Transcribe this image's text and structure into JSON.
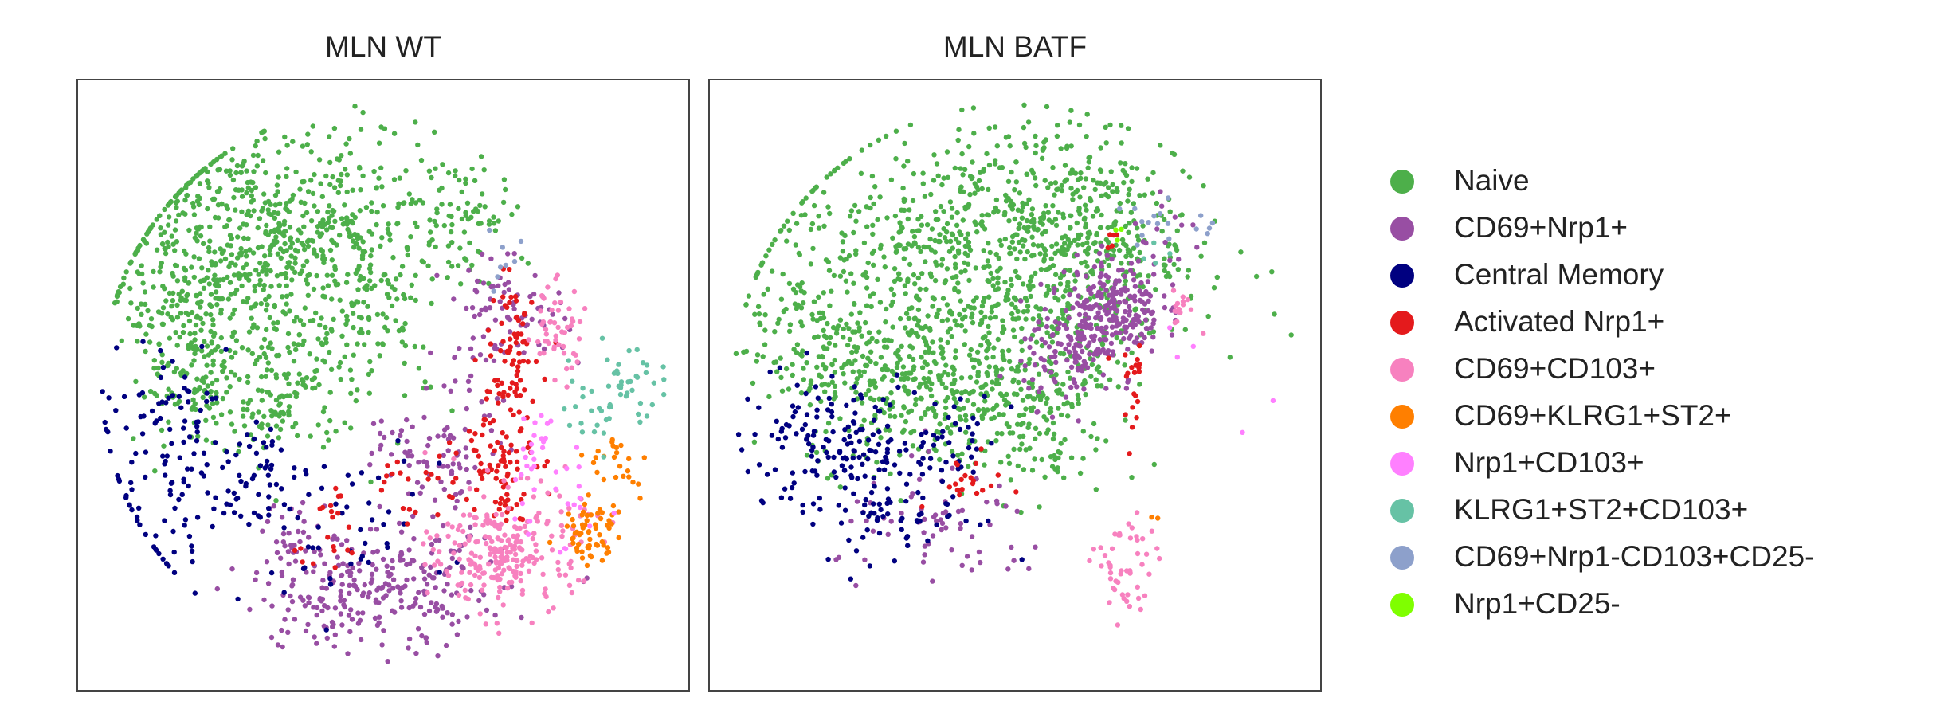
{
  "chart_data": [
    {
      "type": "scatter",
      "title": "MLN WT",
      "xlabel": "",
      "ylabel": "",
      "axes_visible": false,
      "grid": false,
      "xlim": [
        0,
        1
      ],
      "ylim": [
        0,
        1
      ],
      "series": [
        {
          "name": "Naive",
          "color": "#4daf4a",
          "clusters": [
            [
              0.32,
              0.76,
              0.13,
              0.08,
              520
            ],
            [
              0.22,
              0.63,
              0.08,
              0.09,
              230
            ],
            [
              0.5,
              0.64,
              0.06,
              0.09,
              100
            ],
            [
              0.62,
              0.79,
              0.06,
              0.05,
              70
            ],
            [
              0.32,
              0.48,
              0.06,
              0.05,
              110
            ],
            [
              0.19,
              0.5,
              0.04,
              0.04,
              60
            ],
            [
              0.14,
              0.62,
              0.04,
              0.05,
              40
            ],
            [
              0.4,
              0.57,
              0.05,
              0.07,
              70
            ]
          ]
        },
        {
          "name": "CD69+Nrp1+",
          "color": "#984ea3",
          "clusters": [
            [
              0.52,
              0.16,
              0.09,
              0.05,
              220
            ],
            [
              0.7,
              0.62,
              0.05,
              0.04,
              80
            ],
            [
              0.36,
              0.24,
              0.03,
              0.04,
              40
            ],
            [
              0.62,
              0.42,
              0.04,
              0.08,
              60
            ],
            [
              0.55,
              0.4,
              0.04,
              0.03,
              30
            ],
            [
              0.38,
              0.13,
              0.05,
              0.03,
              40
            ]
          ]
        },
        {
          "name": "Central Memory",
          "color": "#000080",
          "clusters": [
            [
              0.14,
              0.34,
              0.07,
              0.09,
              100
            ],
            [
              0.29,
              0.36,
              0.04,
              0.05,
              50
            ],
            [
              0.4,
              0.27,
              0.1,
              0.06,
              50
            ],
            [
              0.17,
              0.47,
              0.03,
              0.04,
              20
            ]
          ]
        },
        {
          "name": "Activated Nrp1+",
          "color": "#e41a1c",
          "clusters": [
            [
              0.69,
              0.38,
              0.03,
              0.05,
              80
            ],
            [
              0.7,
              0.51,
              0.025,
              0.05,
              50
            ],
            [
              0.71,
              0.6,
              0.02,
              0.04,
              30
            ],
            [
              0.41,
              0.27,
              0.03,
              0.04,
              20
            ],
            [
              0.55,
              0.33,
              0.03,
              0.04,
              20
            ]
          ]
        },
        {
          "name": "CD69+CD103+",
          "color": "#f781bf",
          "clusters": [
            [
              0.71,
              0.23,
              0.06,
              0.05,
              220
            ],
            [
              0.78,
              0.59,
              0.025,
              0.04,
              50
            ],
            [
              0.68,
              0.2,
              0.03,
              0.03,
              30
            ]
          ]
        },
        {
          "name": "CD69+KLRG1+ST2+",
          "color": "#ff7f00",
          "clusters": [
            [
              0.84,
              0.26,
              0.025,
              0.025,
              60
            ],
            [
              0.88,
              0.37,
              0.03,
              0.03,
              25
            ]
          ]
        },
        {
          "name": "Nrp1+CD103+",
          "color": "#ff80ff",
          "clusters": [
            [
              0.75,
              0.37,
              0.025,
              0.06,
              25
            ],
            [
              0.8,
              0.3,
              0.03,
              0.05,
              15
            ]
          ]
        },
        {
          "name": "KLRG1+ST2+CD103+",
          "color": "#66c2a5",
          "clusters": [
            [
              0.9,
              0.5,
              0.04,
              0.03,
              40
            ],
            [
              0.83,
              0.45,
              0.02,
              0.03,
              15
            ]
          ]
        },
        {
          "name": "CD69+Nrp1-CD103+CD25-",
          "color": "#8da0cb",
          "clusters": [
            [
              0.7,
              0.71,
              0.02,
              0.04,
              8
            ]
          ]
        },
        {
          "name": "Nrp1+CD25-",
          "color": "#7fff00",
          "clusters": []
        }
      ]
    },
    {
      "type": "scatter",
      "title": "MLN BATF",
      "xlabel": "",
      "ylabel": "",
      "axes_visible": false,
      "grid": false,
      "xlim": [
        0,
        1
      ],
      "ylim": [
        0,
        1
      ],
      "series": [
        {
          "name": "Naive",
          "color": "#4daf4a",
          "clusters": [
            [
              0.45,
              0.72,
              0.17,
              0.1,
              850
            ],
            [
              0.38,
              0.5,
              0.11,
              0.07,
              380
            ],
            [
              0.18,
              0.55,
              0.06,
              0.05,
              120
            ],
            [
              0.53,
              0.43,
              0.06,
              0.06,
              90
            ],
            [
              0.61,
              0.78,
              0.06,
              0.06,
              110
            ],
            [
              0.62,
              0.6,
              0.05,
              0.06,
              80
            ]
          ]
        },
        {
          "name": "CD69+Nrp1+",
          "color": "#984ea3",
          "clusters": [
            [
              0.66,
              0.63,
              0.04,
              0.04,
              220
            ],
            [
              0.59,
              0.55,
              0.04,
              0.04,
              110
            ],
            [
              0.39,
              0.26,
              0.09,
              0.05,
              70
            ],
            [
              0.75,
              0.74,
              0.03,
              0.03,
              15
            ]
          ]
        },
        {
          "name": "Central Memory",
          "color": "#000080",
          "clusters": [
            [
              0.2,
              0.4,
              0.08,
              0.06,
              160
            ],
            [
              0.32,
              0.3,
              0.06,
              0.05,
              60
            ],
            [
              0.4,
              0.41,
              0.04,
              0.04,
              30
            ]
          ]
        },
        {
          "name": "Activated Nrp1+",
          "color": "#e41a1c",
          "clusters": [
            [
              0.69,
              0.53,
              0.015,
              0.02,
              15
            ],
            [
              0.42,
              0.34,
              0.03,
              0.02,
              20
            ],
            [
              0.66,
              0.74,
              0.01,
              0.01,
              5
            ],
            [
              0.69,
              0.46,
              0.01,
              0.03,
              6
            ]
          ]
        },
        {
          "name": "CD69+CD103+",
          "color": "#f781bf",
          "clusters": [
            [
              0.68,
              0.19,
              0.025,
              0.05,
              50
            ],
            [
              0.77,
              0.63,
              0.015,
              0.015,
              15
            ]
          ]
        },
        {
          "name": "CD69+KLRG1+ST2+",
          "color": "#ff7f00",
          "clusters": [
            [
              0.74,
              0.28,
              0.01,
              0.01,
              2
            ]
          ]
        },
        {
          "name": "Nrp1+CD103+",
          "color": "#ff80ff",
          "clusters": [
            [
              0.92,
              0.47,
              0.01,
              0.01,
              1
            ],
            [
              0.87,
              0.41,
              0.01,
              0.01,
              1
            ],
            [
              0.77,
              0.58,
              0.02,
              0.02,
              3
            ]
          ]
        },
        {
          "name": "KLRG1+ST2+CD103+",
          "color": "#66c2a5",
          "clusters": [
            [
              0.73,
              0.71,
              0.02,
              0.02,
              4
            ]
          ]
        },
        {
          "name": "CD69+Nrp1-CD103+CD25-",
          "color": "#8da0cb",
          "clusters": [
            [
              0.72,
              0.76,
              0.03,
              0.02,
              12
            ],
            [
              0.79,
              0.76,
              0.02,
              0.01,
              5
            ]
          ]
        },
        {
          "name": "Nrp1+CD25-",
          "color": "#7fff00",
          "clusters": [
            [
              0.67,
              0.75,
              0.01,
              0.01,
              3
            ]
          ]
        }
      ]
    }
  ],
  "legend": {
    "placement": "right",
    "items": [
      {
        "label": "Naive",
        "color": "#4daf4a"
      },
      {
        "label": "CD69+Nrp1+",
        "color": "#984ea3"
      },
      {
        "label": "Central Memory",
        "color": "#000080"
      },
      {
        "label": "Activated Nrp1+",
        "color": "#e41a1c"
      },
      {
        "label": "CD69+CD103+",
        "color": "#f781bf"
      },
      {
        "label": "CD69+KLRG1+ST2+",
        "color": "#ff7f00"
      },
      {
        "label": "Nrp1+CD103+",
        "color": "#ff80ff"
      },
      {
        "label": "KLRG1+ST2+CD103+",
        "color": "#66c2a5"
      },
      {
        "label": "CD69+Nrp1-CD103+CD25-",
        "color": "#8da0cb"
      },
      {
        "label": "Nrp1+CD25-",
        "color": "#7fff00"
      }
    ]
  }
}
